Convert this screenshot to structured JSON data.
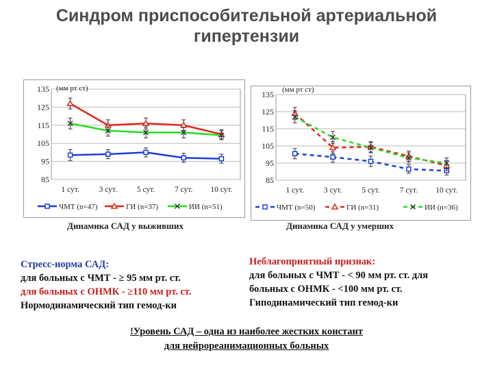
{
  "title": {
    "line1": "Синдром приспособительной артериальной",
    "line2": "гипертензии"
  },
  "colors": {
    "tbi": "#1a3ed8",
    "stroke": "#dd2a1a",
    "other": "#22dd22",
    "error": "#333333",
    "grid": "#b8b8b8",
    "title": "#4d4d4d",
    "blue_text": "#1f3e9e",
    "red_text": "#c81e1e"
  },
  "chart_data": [
    {
      "type": "line",
      "unit_label": "(мм рт ст)",
      "categories": [
        "1 сут.",
        "3 сут.",
        "5 сут.",
        "7 сут.",
        "10 сут."
      ],
      "ylim": [
        85,
        135
      ],
      "yticks": [
        85,
        95,
        105,
        115,
        125,
        135
      ],
      "grid": true,
      "legend": "bottom",
      "series": [
        {
          "name": "ЧМТ (n=47)",
          "values": [
            98.5,
            99,
            100,
            97,
            96.5
          ],
          "errors": [
            3,
            2.5,
            2.5,
            2.5,
            2.5
          ],
          "marker": "square",
          "dash": false
        },
        {
          "name": "ГИ (n=37)",
          "values": [
            127,
            115,
            116,
            115,
            110
          ],
          "errors": [
            3,
            3,
            3,
            3,
            2.5
          ],
          "marker": "triangle",
          "dash": false
        },
        {
          "name": "ИИ (n=51)",
          "values": [
            116,
            112,
            111,
            111,
            109.5
          ],
          "errors": [
            3,
            3,
            3,
            3,
            2.5
          ],
          "marker": "x",
          "dash": false
        }
      ],
      "caption": "Динамика САД у выживших"
    },
    {
      "type": "line",
      "unit_label": "(мм рт ст)",
      "categories": [
        "1 сут.",
        "3 сут.",
        "5 сут.",
        "7 сут.",
        "10 сут."
      ],
      "ylim": [
        85,
        135
      ],
      "yticks": [
        85,
        95,
        105,
        115,
        125,
        135
      ],
      "grid": true,
      "legend": "bottom",
      "series": [
        {
          "name": "ЧМТ (n=50)",
          "values": [
            100.5,
            98.5,
            96,
            91.5,
            90.5
          ],
          "errors": [
            3,
            3,
            3,
            2.5,
            2.5
          ],
          "marker": "square",
          "dash": true
        },
        {
          "name": "ГИ (n=31)",
          "values": [
            124,
            104,
            104.5,
            99,
            93.5
          ],
          "errors": [
            3.5,
            3.5,
            3,
            3,
            3
          ],
          "marker": "triangle",
          "dash": true
        },
        {
          "name": "ИИ (n=36)",
          "values": [
            122,
            110,
            104,
            98,
            95
          ],
          "errors": [
            3.5,
            3.5,
            3,
            3,
            3
          ],
          "marker": "x",
          "dash": true
        }
      ],
      "caption": "Динамика САД у умерших"
    }
  ],
  "left_text": {
    "line1": "Стресс-норма САД:",
    "line2": "для больных с ЧМТ - ≥ 95 мм рт. ст.",
    "line3": "для больных с ОНМК - ≥110 мм рт. ст.",
    "line4": "Нормодинамический тип гемод-ки"
  },
  "right_text": {
    "line1": "Неблагоприятный признак:",
    "line2": "для больных с ЧМТ - < 90 мм рт. ст. для",
    "line3": "больных с ОНМК - <100 мм рт. ст.",
    "line4": "Гиподинамический тип гемод-ки"
  },
  "bottom_note": {
    "line1": "!Уровень САД – одна из наиболее жестких констант",
    "line2": "для нейрореанимационных больных"
  }
}
